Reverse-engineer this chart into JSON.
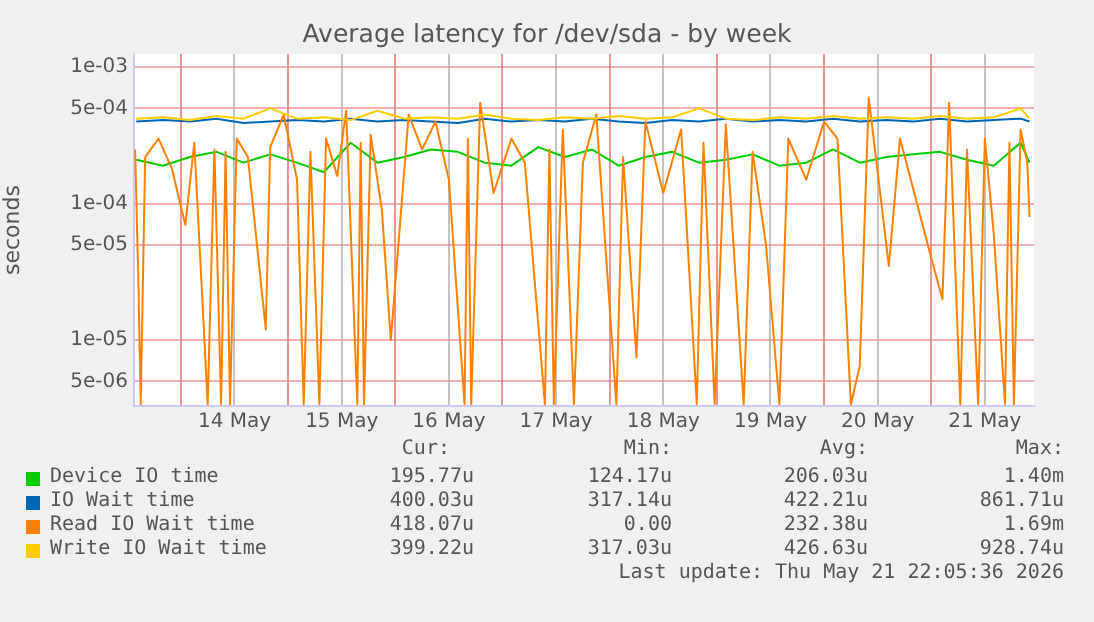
{
  "chart_data": {
    "type": "line",
    "title": "Average latency for /dev/sda - by week",
    "ylabel": "seconds",
    "log": "y",
    "grid": true,
    "legend": "bottom",
    "marker": "none",
    "line_style": "solid",
    "ylim": [
      3.3e-06,
      0.00125
    ],
    "yticks": [
      {
        "value": 5e-06,
        "label": "5e-06"
      },
      {
        "value": 1e-05,
        "label": "1e-05"
      },
      {
        "value": 5e-05,
        "label": "5e-05"
      },
      {
        "value": 0.0001,
        "label": "1e-04"
      },
      {
        "value": 0.0005,
        "label": "5e-04"
      },
      {
        "value": 0.001,
        "label": "1e-03"
      }
    ],
    "xlim": [
      "2026-05-13T13:30",
      "2026-05-21T23:00"
    ],
    "xticks": [
      {
        "value": "2026-05-14T00:00",
        "label": null
      },
      {
        "value": "2026-05-14T12:00",
        "label": "14 May"
      },
      {
        "value": "2026-05-15T00:00",
        "label": null
      },
      {
        "value": "2026-05-15T12:00",
        "label": "15 May"
      },
      {
        "value": "2026-05-16T00:00",
        "label": null
      },
      {
        "value": "2026-05-16T12:00",
        "label": "16 May"
      },
      {
        "value": "2026-05-17T00:00",
        "label": null
      },
      {
        "value": "2026-05-17T12:00",
        "label": "17 May"
      },
      {
        "value": "2026-05-18T00:00",
        "label": null
      },
      {
        "value": "2026-05-18T12:00",
        "label": "18 May"
      },
      {
        "value": "2026-05-19T00:00",
        "label": null
      },
      {
        "value": "2026-05-19T12:00",
        "label": "19 May"
      },
      {
        "value": "2026-05-20T00:00",
        "label": null
      },
      {
        "value": "2026-05-20T12:00",
        "label": "20 May"
      },
      {
        "value": "2026-05-21T00:00",
        "label": null
      },
      {
        "value": "2026-05-21T12:00",
        "label": "21 May"
      }
    ],
    "x": [
      "2026-05-13T14:00",
      "2026-05-13T20:00",
      "2026-05-14T02:00",
      "2026-05-14T08:00",
      "2026-05-14T14:00",
      "2026-05-14T20:00",
      "2026-05-15T02:00",
      "2026-05-15T08:00",
      "2026-05-15T14:00",
      "2026-05-15T20:00",
      "2026-05-16T02:00",
      "2026-05-16T08:00",
      "2026-05-16T14:00",
      "2026-05-16T20:00",
      "2026-05-17T02:00",
      "2026-05-17T08:00",
      "2026-05-17T14:00",
      "2026-05-17T20:00",
      "2026-05-18T02:00",
      "2026-05-18T08:00",
      "2026-05-18T14:00",
      "2026-05-18T20:00",
      "2026-05-19T02:00",
      "2026-05-19T08:00",
      "2026-05-19T14:00",
      "2026-05-19T20:00",
      "2026-05-20T02:00",
      "2026-05-20T08:00",
      "2026-05-20T14:00",
      "2026-05-20T20:00",
      "2026-05-21T02:00",
      "2026-05-21T08:00",
      "2026-05-21T14:00",
      "2026-05-21T20:00",
      "2026-05-21T22:00"
    ],
    "series": [
      {
        "name": "Device IO time",
        "color": "#00cc00",
        "values": [
          0.00021,
          0.00019,
          0.00022,
          0.00024,
          0.0002,
          0.00023,
          0.0002,
          0.00017,
          0.00028,
          0.0002,
          0.00022,
          0.00025,
          0.00024,
          0.0002,
          0.00019,
          0.00026,
          0.00022,
          0.00025,
          0.00019,
          0.00022,
          0.00024,
          0.0002,
          0.00021,
          0.00023,
          0.00019,
          0.0002,
          0.00025,
          0.0002,
          0.00022,
          0.00023,
          0.00024,
          0.00021,
          0.00019,
          0.00028,
          0.0002
        ]
      },
      {
        "name": "IO Wait time",
        "color": "#0066b3",
        "values": [
          0.0004,
          0.00041,
          0.0004,
          0.00042,
          0.00039,
          0.0004,
          0.00041,
          0.0004,
          0.00042,
          0.0004,
          0.00041,
          0.0004,
          0.00039,
          0.00042,
          0.0004,
          0.00041,
          0.0004,
          0.00042,
          0.0004,
          0.00039,
          0.00041,
          0.0004,
          0.00042,
          0.0004,
          0.00041,
          0.0004,
          0.00042,
          0.0004,
          0.00041,
          0.0004,
          0.00042,
          0.0004,
          0.00041,
          0.00042,
          0.0004
        ]
      },
      {
        "name": "Read IO Wait time",
        "color": "#ff8000",
        "x": [
          "2026-05-13T13:45",
          "2026-05-13T14:30",
          "2026-05-13T15:00",
          "2026-05-13T16:00",
          "2026-05-13T19:00",
          "2026-05-13T22:00",
          "2026-05-14T01:00",
          "2026-05-14T03:00",
          "2026-05-14T06:00",
          "2026-05-14T07:30",
          "2026-05-14T09:00",
          "2026-05-14T10:00",
          "2026-05-14T11:00",
          "2026-05-14T12:30",
          "2026-05-14T15:00",
          "2026-05-14T19:00",
          "2026-05-14T20:00",
          "2026-05-14T23:00",
          "2026-05-15T02:00",
          "2026-05-15T03:30",
          "2026-05-15T05:00",
          "2026-05-15T07:00",
          "2026-05-15T08:30",
          "2026-05-15T11:00",
          "2026-05-15T13:00",
          "2026-05-15T15:30",
          "2026-05-15T16:15",
          "2026-05-15T17:00",
          "2026-05-15T18:30",
          "2026-05-15T21:00",
          "2026-05-15T23:00",
          "2026-05-16T03:00",
          "2026-05-16T06:00",
          "2026-05-16T09:00",
          "2026-05-16T12:00",
          "2026-05-16T15:30",
          "2026-05-16T16:15",
          "2026-05-16T17:00",
          "2026-05-16T19:00",
          "2026-05-16T22:00",
          "2026-05-17T02:00",
          "2026-05-17T05:00",
          "2026-05-17T09:30",
          "2026-05-17T10:30",
          "2026-05-17T11:30",
          "2026-05-17T13:30",
          "2026-05-17T16:00",
          "2026-05-17T18:00",
          "2026-05-17T21:00",
          "2026-05-18T01:30",
          "2026-05-18T03:00",
          "2026-05-18T06:00",
          "2026-05-18T08:00",
          "2026-05-18T12:00",
          "2026-05-18T16:00",
          "2026-05-18T19:30",
          "2026-05-18T21:00",
          "2026-05-18T23:30",
          "2026-05-19T02:00",
          "2026-05-19T06:00",
          "2026-05-19T08:00",
          "2026-05-19T11:00",
          "2026-05-19T14:00",
          "2026-05-19T16:00",
          "2026-05-19T20:00",
          "2026-05-20T00:00",
          "2026-05-20T03:00",
          "2026-05-20T06:00",
          "2026-05-20T08:00",
          "2026-05-20T10:00",
          "2026-05-20T14:30",
          "2026-05-20T17:00",
          "2026-05-21T00:00",
          "2026-05-21T02:30",
          "2026-05-21T04:00",
          "2026-05-21T06:30",
          "2026-05-21T08:00",
          "2026-05-21T10:30",
          "2026-05-21T12:00",
          "2026-05-21T14:00",
          "2026-05-21T16:30",
          "2026-05-21T17:30",
          "2026-05-21T18:30",
          "2026-05-21T20:00",
          "2026-05-21T21:30",
          "2026-05-21T22:00"
        ],
        "values": [
          0.00025,
          2.5e-05,
          3.4e-06,
          0.00022,
          0.0003,
          0.00018,
          7e-05,
          0.00028,
          3.4e-06,
          0.00025,
          3.4e-06,
          0.00024,
          3.4e-06,
          0.0003,
          0.00022,
          1.2e-05,
          0.00026,
          0.00045,
          0.00015,
          3.4e-06,
          0.00024,
          3.4e-06,
          0.0003,
          0.00016,
          0.00048,
          3.4e-06,
          0.00028,
          3.4e-06,
          0.00032,
          9e-05,
          1e-05,
          0.00045,
          0.00025,
          0.0004,
          0.00015,
          3.4e-06,
          0.0003,
          3.4e-06,
          0.00055,
          0.00012,
          0.0003,
          0.0002,
          3.4e-06,
          0.00025,
          3.4e-06,
          0.00035,
          3.4e-06,
          0.0002,
          0.00045,
          3.4e-06,
          0.00022,
          7.5e-06,
          0.0004,
          0.00012,
          0.00035,
          3.4e-06,
          0.00028,
          3.4e-06,
          0.00038,
          3.4e-06,
          0.00024,
          5e-05,
          3.4e-06,
          0.0003,
          0.00015,
          0.0004,
          0.0003,
          3.4e-06,
          6.5e-06,
          0.0006,
          3.5e-05,
          0.0003,
          4e-05,
          2e-05,
          0.00055,
          3.4e-06,
          0.00025,
          3.4e-06,
          0.0003,
          6e-05,
          3.4e-06,
          0.00028,
          3.4e-06,
          0.00035,
          0.0002,
          8e-05
        ]
      },
      {
        "name": "Write IO Wait time",
        "color": "#ffcc00",
        "values": [
          0.00042,
          0.00043,
          0.00041,
          0.00044,
          0.00042,
          0.0005,
          0.00042,
          0.00043,
          0.00041,
          0.00048,
          0.00042,
          0.00043,
          0.00042,
          0.00045,
          0.00042,
          0.00041,
          0.00043,
          0.00042,
          0.00044,
          0.00042,
          0.00043,
          0.0005,
          0.00042,
          0.00041,
          0.00043,
          0.00042,
          0.00044,
          0.00042,
          0.00043,
          0.00042,
          0.00044,
          0.00042,
          0.00043,
          0.0005,
          0.00042
        ]
      }
    ],
    "annotations": [
      "Cur:",
      "Min:",
      "Avg:",
      "Max:",
      "195.77u",
      "124.17u",
      "206.03u",
      "1.40m",
      "400.03u",
      "317.14u",
      "422.21u",
      "861.71u",
      "418.07u",
      "0.00",
      "232.38u",
      "1.69m",
      "399.22u",
      "317.03u",
      "426.63u",
      "928.74u",
      "Last update: Thu May 21 22:05:36 2026"
    ]
  }
}
